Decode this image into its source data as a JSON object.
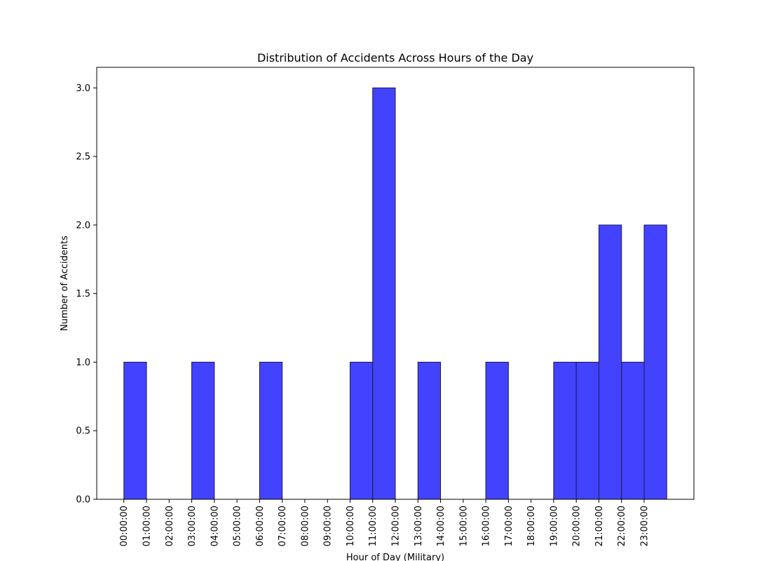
{
  "chart_data": {
    "type": "bar",
    "title": "Distribution of Accidents Across Hours of the Day",
    "xlabel": "Hour of Day (Military)",
    "ylabel": "Number of Accidents",
    "ylim": [
      0,
      3.15
    ],
    "y_ticks": [
      "0.0",
      "0.5",
      "1.0",
      "1.5",
      "2.0",
      "2.5",
      "3.0"
    ],
    "grid": false,
    "legend": "none",
    "categories": [
      "00:00:00",
      "01:00:00",
      "02:00:00",
      "03:00:00",
      "04:00:00",
      "05:00:00",
      "06:00:00",
      "07:00:00",
      "08:00:00",
      "09:00:00",
      "10:00:00",
      "11:00:00",
      "12:00:00",
      "13:00:00",
      "14:00:00",
      "15:00:00",
      "16:00:00",
      "17:00:00",
      "18:00:00",
      "19:00:00",
      "20:00:00",
      "21:00:00",
      "22:00:00",
      "23:00:00"
    ],
    "bins": [
      {
        "start": 0,
        "end": 1,
        "value": 1
      },
      {
        "start": 3,
        "end": 4,
        "value": 1
      },
      {
        "start": 6,
        "end": 7,
        "value": 1
      },
      {
        "start": 10,
        "end": 11,
        "value": 1
      },
      {
        "start": 11,
        "end": 12,
        "value": 3
      },
      {
        "start": 13,
        "end": 14,
        "value": 1
      },
      {
        "start": 16,
        "end": 17,
        "value": 1
      },
      {
        "start": 19,
        "end": 20,
        "value": 1
      },
      {
        "start": 20,
        "end": 21,
        "value": 1
      },
      {
        "start": 21,
        "end": 22,
        "value": 2
      },
      {
        "start": 22,
        "end": 23,
        "value": 1
      },
      {
        "start": 23,
        "end": 24,
        "value": 2
      }
    ],
    "colors": {
      "bar_fill": "#4343ff",
      "bar_edge": "#1a1a4d",
      "axis": "#000000"
    }
  }
}
